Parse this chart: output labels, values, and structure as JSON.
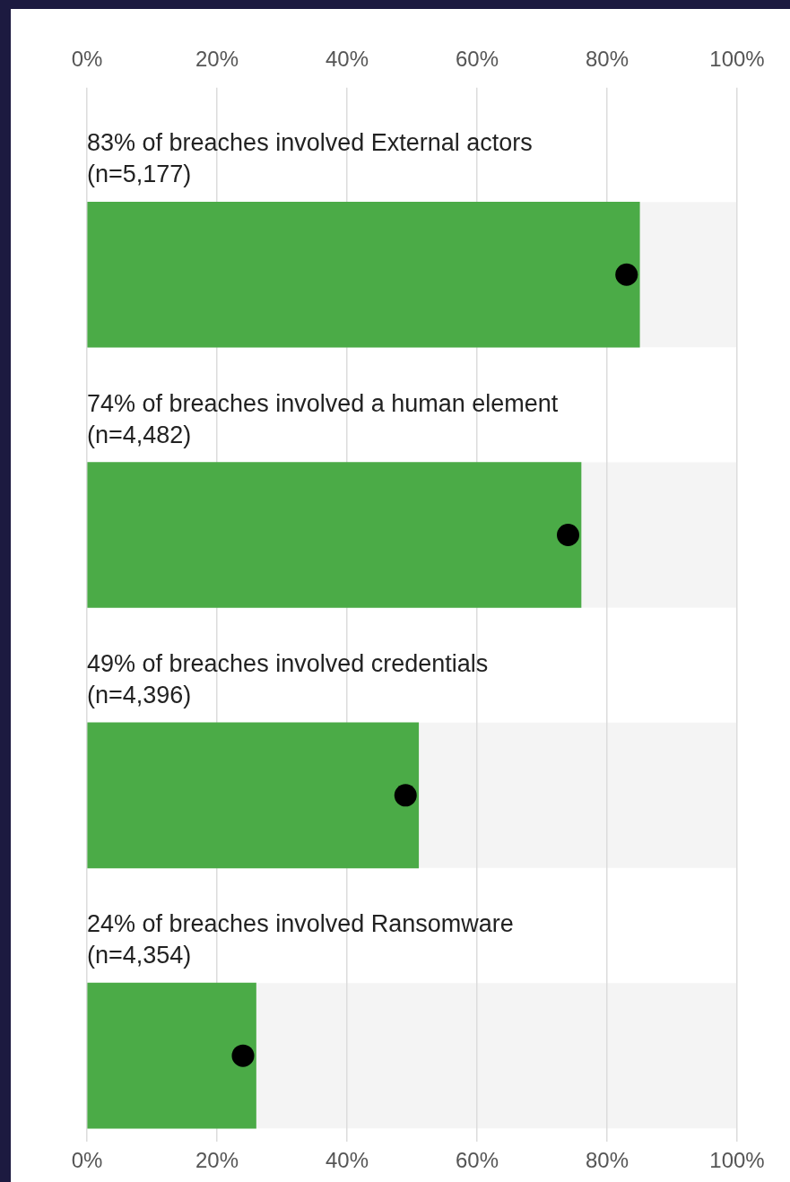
{
  "chart_data": {
    "type": "bar",
    "orientation": "horizontal",
    "categories": [
      "83% of breaches involved External actors (n=5,177)",
      "74% of breaches involved a human element (n=4,482)",
      "49% of breaches involved credentials (n=4,396)",
      "24% of breaches involved Ransomware (n=4,354)"
    ],
    "series": [
      {
        "type": "bar",
        "color": "#4bab47",
        "values": [
          85,
          76,
          51,
          26
        ]
      },
      {
        "type": "scatter",
        "color": "#000000",
        "x": [
          "83% of breaches involved External actors (n=5,177)",
          "74% of breaches involved a human element (n=4,482)",
          "49% of breaches involved credentials (n=4,396)",
          "24% of breaches involved Ransomware (n=4,354)"
        ],
        "values": [
          83,
          74,
          49,
          24
        ]
      }
    ],
    "marker": "circle",
    "xlim": [
      0,
      100
    ],
    "xticks": [
      {
        "value": 0,
        "label": "0%"
      },
      {
        "value": 20,
        "label": "20%"
      },
      {
        "value": 40,
        "label": "40%"
      },
      {
        "value": 60,
        "label": "60%"
      },
      {
        "value": 80,
        "label": "80%"
      },
      {
        "value": 100,
        "label": "100%"
      }
    ],
    "x2lim": [
      0,
      100
    ],
    "x2ticks": [
      {
        "value": 0,
        "label": "0%"
      },
      {
        "value": 20,
        "label": "20%"
      },
      {
        "value": 40,
        "label": "40%"
      },
      {
        "value": 60,
        "label": "60%"
      },
      {
        "value": 80,
        "label": "80%"
      },
      {
        "value": 100,
        "label": "100%"
      }
    ],
    "grid": "x"
  }
}
